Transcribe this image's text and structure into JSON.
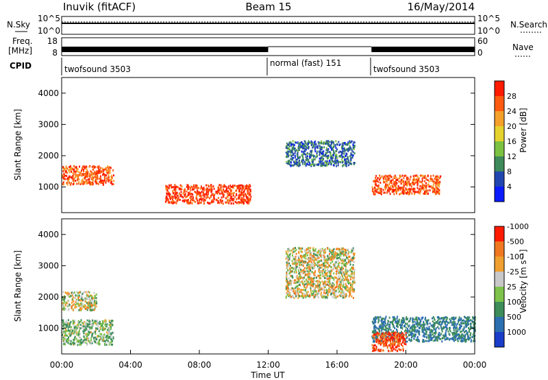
{
  "header": {
    "station": "Inuvik (fitACF)",
    "beam": "Beam 15",
    "date": "16/May/2014"
  },
  "params_panel": {
    "nsky_label": "N.Sky",
    "nsearch_label": "N.Search",
    "noise_ticks": [
      "10^5",
      "10^0"
    ],
    "freq_label": "Freq.",
    "freq_unit": "[MHz]",
    "freq_ticks": [
      "18",
      "8"
    ],
    "nave_label": "Nave",
    "nave_ticks": [
      "60",
      "0"
    ],
    "cpid_label": "CPID",
    "cpid_segments": [
      {
        "label": "twofsound 3503",
        "start_hour": 0,
        "end_hour": 12
      },
      {
        "label": "normal (fast) 151",
        "start_hour": 12,
        "end_hour": 18
      },
      {
        "label": "twofsound 3503",
        "start_hour": 18,
        "end_hour": 24
      }
    ]
  },
  "chart_data": [
    {
      "type": "heatmap",
      "title": "",
      "quantity": "Power",
      "ylabel": "Slant Range [km]",
      "xlabel": "",
      "xlim_hours": [
        0,
        24
      ],
      "ylim": [
        180,
        4500
      ],
      "yticks": [
        "1000",
        "2000",
        "3000",
        "4000"
      ],
      "colorbar": {
        "label": "Power [dB]",
        "ticks": [
          "4",
          "8",
          "12",
          "16",
          "20",
          "24",
          "28"
        ],
        "colors": [
          "#0a1cff",
          "#2246b0",
          "#3f8a5a",
          "#7bc142",
          "#e6d22e",
          "#f5a02a",
          "#ff5a10",
          "#ff1a00"
        ]
      },
      "features": [
        {
          "range_km": [
            1100,
            1700
          ],
          "hours": [
            0,
            3
          ],
          "power_db": 26
        },
        {
          "range_km": [
            500,
            1100
          ],
          "hours": [
            6,
            11
          ],
          "power_db": 28
        },
        {
          "range_km": [
            1700,
            2500
          ],
          "hours": [
            13,
            17
          ],
          "power_db": 8
        },
        {
          "range_km": [
            800,
            1400
          ],
          "hours": [
            18,
            22
          ],
          "power_db": 27
        }
      ]
    },
    {
      "type": "heatmap",
      "title": "",
      "quantity": "Velocity",
      "ylabel": "Slant Range [km]",
      "xlabel": "Time UT",
      "xticks": [
        "00:00",
        "04:00",
        "08:00",
        "12:00",
        "16:00",
        "20:00",
        "00:00"
      ],
      "xlim_hours": [
        0,
        24
      ],
      "ylim": [
        180,
        4500
      ],
      "yticks": [
        "1000",
        "2000",
        "3000",
        "4000"
      ],
      "colorbar": {
        "label": "Velocity [m s⁻¹]",
        "ticks": [
          "1000",
          "500",
          "100",
          "25",
          "-25",
          "-100",
          "-500",
          "-1000"
        ],
        "colors": [
          "#1a3cc8",
          "#2c6fb0",
          "#3d8c5a",
          "#7dc24a",
          "#c8c8c8",
          "#f0a030",
          "#f07820",
          "#ff1a00"
        ]
      },
      "features": [
        {
          "range_km": [
            500,
            1300
          ],
          "hours": [
            0,
            3
          ],
          "velocity": 100
        },
        {
          "range_km": [
            1600,
            2200
          ],
          "hours": [
            0,
            2
          ],
          "velocity": 0
        },
        {
          "range_km": [
            2000,
            3600
          ],
          "hours": [
            13,
            17
          ],
          "velocity": 0
        },
        {
          "range_km": [
            600,
            1400
          ],
          "hours": [
            18,
            24
          ],
          "velocity": 500
        },
        {
          "range_km": [
            300,
            900
          ],
          "hours": [
            18,
            20
          ],
          "velocity": -500
        }
      ]
    }
  ]
}
